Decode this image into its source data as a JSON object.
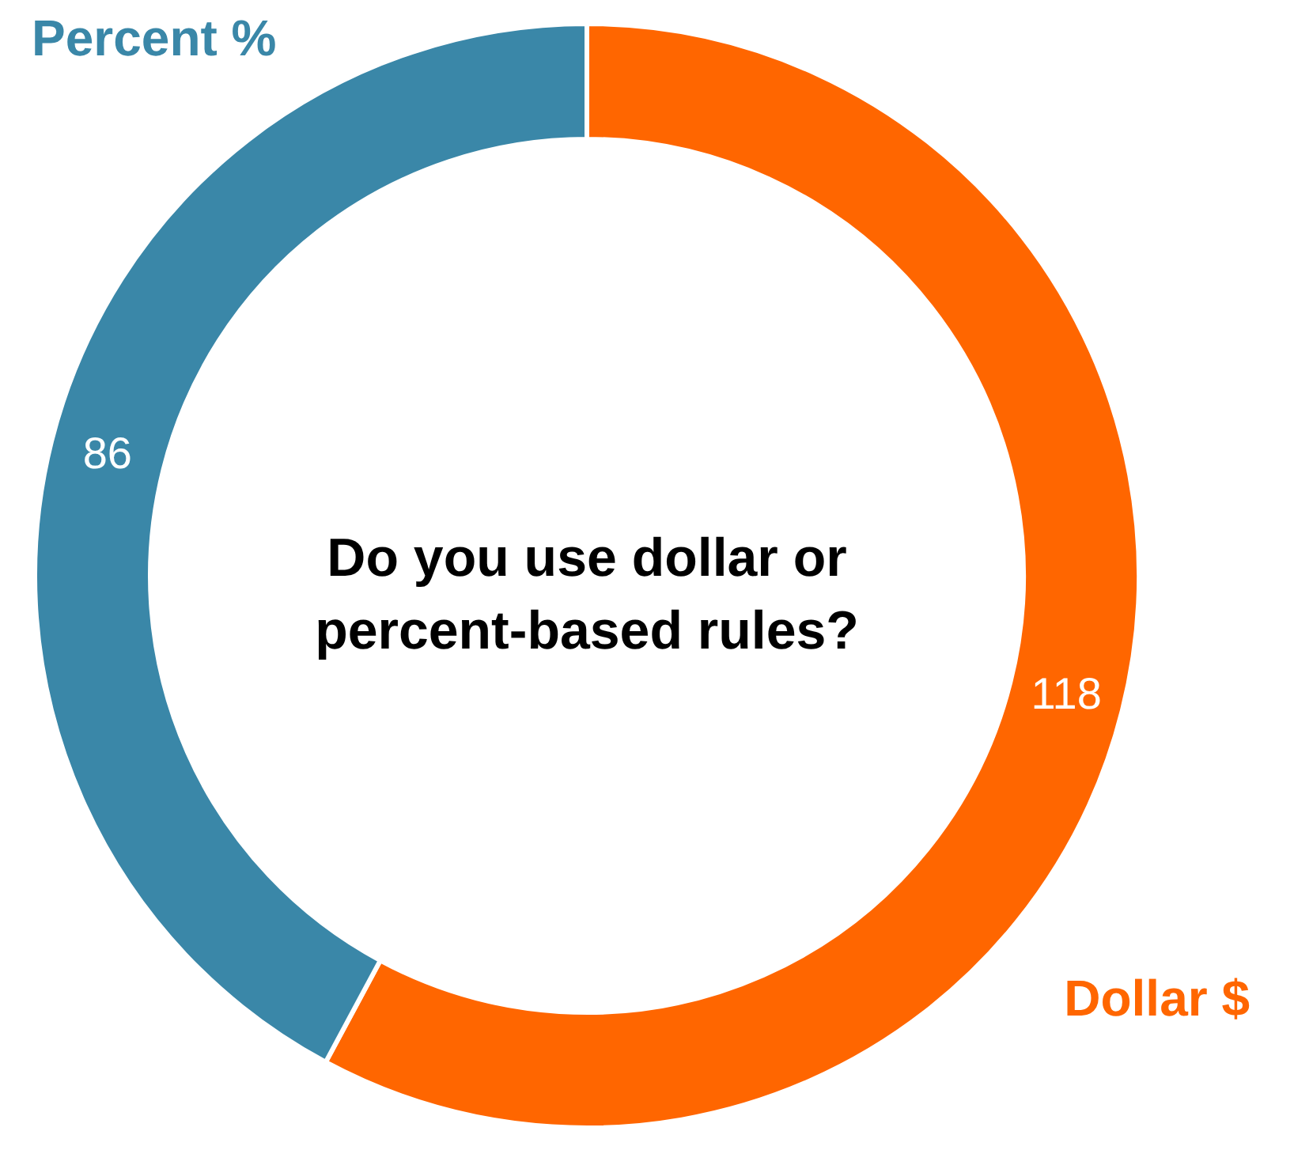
{
  "chart_data": {
    "type": "donut",
    "title": "Do you use dollar or percent-based rules?",
    "categories": [
      "Dollar $",
      "Percent %"
    ],
    "values": [
      118,
      86
    ],
    "colors": [
      "#ff6600",
      "#3a87a8"
    ],
    "data_labels": true,
    "legend": false
  }
}
